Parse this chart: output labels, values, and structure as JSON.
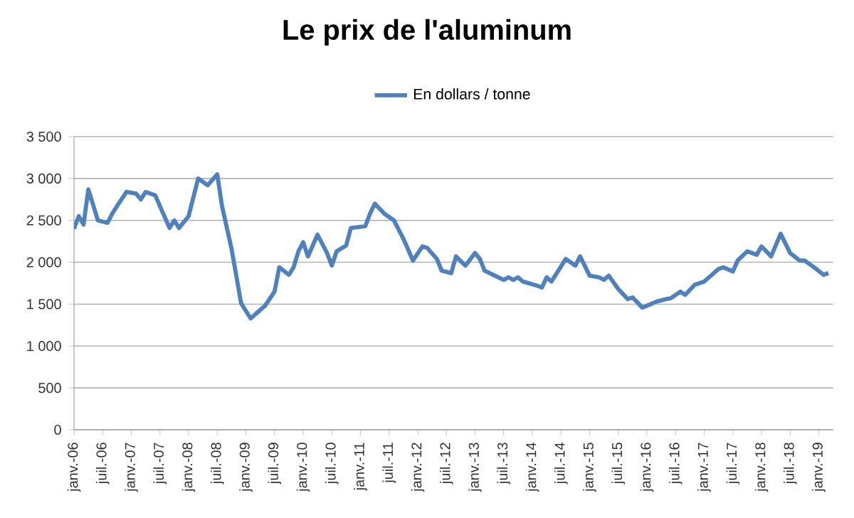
{
  "chart_data": {
    "type": "line",
    "title": "Le prix de l'aluminum",
    "legend": "top",
    "grid": "y",
    "line_style": "solid",
    "marker": "none",
    "x": [
      "2006-01",
      "2006-02",
      "2006-03",
      "2006-04",
      "2006-06",
      "2006-08",
      "2006-09",
      "2006-10",
      "2006-12",
      "2007-02",
      "2007-03",
      "2007-04",
      "2007-06",
      "2007-07",
      "2007-09",
      "2007-10",
      "2007-11",
      "2008-01",
      "2008-03",
      "2008-05",
      "2008-07",
      "2008-08",
      "2008-10",
      "2008-12",
      "2009-02",
      "2009-05",
      "2009-07",
      "2009-08",
      "2009-10",
      "2009-11",
      "2009-12",
      "2010-01",
      "2010-02",
      "2010-04",
      "2010-06",
      "2010-07",
      "2010-08",
      "2010-10",
      "2010-11",
      "2011-02",
      "2011-03",
      "2011-04",
      "2011-06",
      "2011-08",
      "2011-10",
      "2011-12",
      "2012-02",
      "2012-03",
      "2012-05",
      "2012-06",
      "2012-08",
      "2012-09",
      "2012-11",
      "2013-01",
      "2013-02",
      "2013-03",
      "2013-07",
      "2013-08",
      "2013-09",
      "2013-10",
      "2013-11",
      "2014-02",
      "2014-03",
      "2014-04",
      "2014-05",
      "2014-08",
      "2014-10",
      "2014-11",
      "2015-01",
      "2015-03",
      "2015-04",
      "2015-05",
      "2015-07",
      "2015-09",
      "2015-10",
      "2015-12",
      "2016-01",
      "2016-03",
      "2016-05",
      "2016-06",
      "2016-08",
      "2016-09",
      "2016-11",
      "2017-01",
      "2017-03",
      "2017-04",
      "2017-05",
      "2017-07",
      "2017-08",
      "2017-10",
      "2017-12",
      "2018-01",
      "2018-03",
      "2018-05",
      "2018-07",
      "2018-09",
      "2018-10",
      "2018-12",
      "2019-02",
      "2019-03"
    ],
    "series": [
      {
        "name": "En dollars / tonne",
        "color": "#4f81bd",
        "values": [
          2400,
          2550,
          2450,
          2870,
          2500,
          2470,
          2580,
          2670,
          2840,
          2820,
          2750,
          2840,
          2800,
          2670,
          2410,
          2500,
          2410,
          2550,
          3000,
          2920,
          3050,
          2670,
          2160,
          1510,
          1330,
          1480,
          1650,
          1940,
          1850,
          1940,
          2130,
          2240,
          2070,
          2330,
          2110,
          1960,
          2130,
          2200,
          2410,
          2430,
          2580,
          2700,
          2580,
          2500,
          2280,
          2020,
          2190,
          2170,
          2040,
          1900,
          1870,
          2070,
          1960,
          2110,
          2040,
          1900,
          1790,
          1820,
          1790,
          1820,
          1770,
          1720,
          1700,
          1820,
          1770,
          2040,
          1960,
          2070,
          1840,
          1820,
          1790,
          1840,
          1680,
          1560,
          1580,
          1460,
          1480,
          1530,
          1560,
          1570,
          1650,
          1610,
          1730,
          1770,
          1870,
          1920,
          1940,
          1890,
          2020,
          2130,
          2090,
          2190,
          2070,
          2340,
          2110,
          2020,
          2020,
          1940,
          1850,
          1870
        ]
      }
    ],
    "xlim": [
      "2006-01",
      "2019-04"
    ],
    "xticks": [
      {
        "value": "2006-01",
        "label": "janv.-06"
      },
      {
        "value": "2006-07",
        "label": "juil.-06"
      },
      {
        "value": "2007-01",
        "label": "janv.-07"
      },
      {
        "value": "2007-07",
        "label": "juil.-07"
      },
      {
        "value": "2008-01",
        "label": "janv.-08"
      },
      {
        "value": "2008-07",
        "label": "juil.-08"
      },
      {
        "value": "2009-01",
        "label": "janv.-09"
      },
      {
        "value": "2009-07",
        "label": "juil.-09"
      },
      {
        "value": "2010-01",
        "label": "janv.-10"
      },
      {
        "value": "2010-07",
        "label": "juil.-10"
      },
      {
        "value": "2011-01",
        "label": "janv.-11"
      },
      {
        "value": "2011-07",
        "label": "juil.-11"
      },
      {
        "value": "2012-01",
        "label": "janv.-12"
      },
      {
        "value": "2012-07",
        "label": "juil.-12"
      },
      {
        "value": "2013-01",
        "label": "janv.-13"
      },
      {
        "value": "2013-07",
        "label": "juil.-13"
      },
      {
        "value": "2014-01",
        "label": "janv.-14"
      },
      {
        "value": "2014-07",
        "label": "juil.-14"
      },
      {
        "value": "2015-01",
        "label": "janv.-15"
      },
      {
        "value": "2015-07",
        "label": "juil.-15"
      },
      {
        "value": "2016-01",
        "label": "janv.-16"
      },
      {
        "value": "2016-07",
        "label": "juil.-16"
      },
      {
        "value": "2017-01",
        "label": "janv.-17"
      },
      {
        "value": "2017-07",
        "label": "juil.-17"
      },
      {
        "value": "2018-01",
        "label": "janv.-18"
      },
      {
        "value": "2018-07",
        "label": "juil.-18"
      },
      {
        "value": "2019-01",
        "label": "janv.-19"
      }
    ],
    "ylim": [
      0,
      3500
    ],
    "yticks": [
      0,
      500,
      {
        "value": 1000,
        "label": "1 000"
      },
      {
        "value": 1500,
        "label": "1 500"
      },
      {
        "value": 2000,
        "label": "2 000"
      },
      {
        "value": 2500,
        "label": "2 500"
      },
      {
        "value": 3000,
        "label": "3 000"
      },
      {
        "value": 3500,
        "label": "3 500"
      }
    ]
  }
}
